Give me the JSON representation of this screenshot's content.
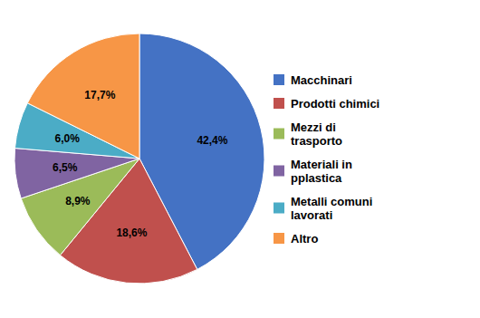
{
  "chart_data": {
    "type": "pie",
    "categories": [
      "Macchinari",
      "Prodotti chimici",
      "Mezzi di\ntrasporto",
      "Materiali in\npplastica",
      "Metalli comuni\nlavorati",
      "Altro"
    ],
    "values": [
      42.4,
      18.6,
      8.9,
      6.5,
      6.0,
      17.7
    ],
    "value_labels": [
      "42,4%",
      "18,6%",
      "8,9%",
      "6,5%",
      "6,0%",
      "17,7%"
    ],
    "colors": [
      "#4472C4",
      "#C0504D",
      "#9BBB59",
      "#8064A2",
      "#4BACC6",
      "#F79646"
    ],
    "data_labels": true,
    "legend": "right"
  }
}
